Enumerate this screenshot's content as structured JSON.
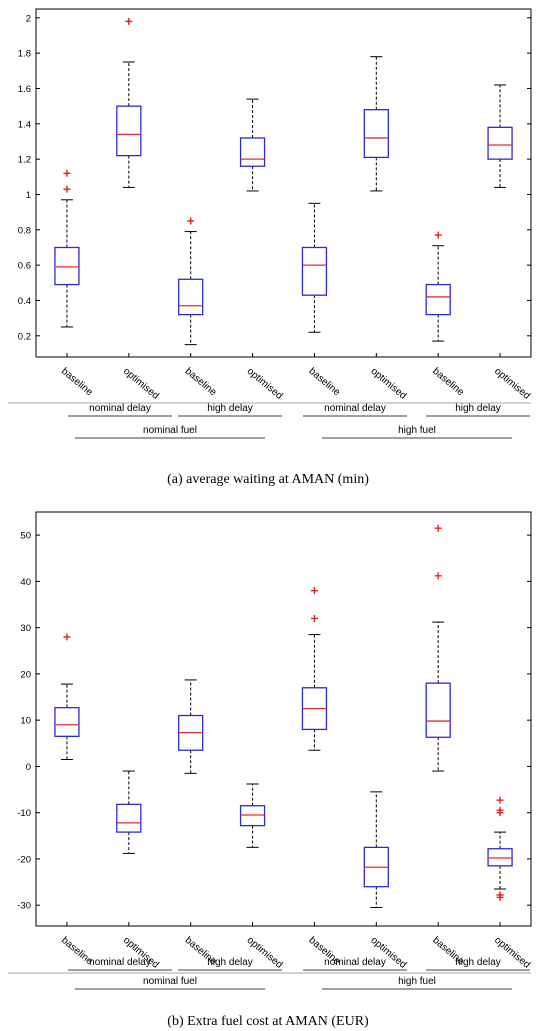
{
  "chart_data": [
    {
      "type": "boxplot",
      "caption": "(a) average waiting at AMAN (min)",
      "ylim": [
        0.08,
        2.05
      ],
      "yticks": [
        "0.2",
        "0.4",
        "0.6",
        "0.8",
        "1",
        "1.2",
        "1.4",
        "1.6",
        "1.8",
        "2"
      ],
      "categories": [
        "baseline",
        "optimised",
        "baseline",
        "optimised",
        "baseline",
        "optimised",
        "baseline",
        "optimised"
      ],
      "delay_groups": [
        "nominal delay",
        "high delay",
        "nominal delay",
        "high delay"
      ],
      "fuel_groups": [
        "nominal fuel",
        "high fuel"
      ],
      "boxes": [
        {
          "whisker_low": 0.25,
          "q1": 0.49,
          "median": 0.59,
          "q3": 0.7,
          "whisker_high": 0.97,
          "outliers": [
            1.03,
            1.12
          ]
        },
        {
          "whisker_low": 1.04,
          "q1": 1.22,
          "median": 1.34,
          "q3": 1.5,
          "whisker_high": 1.75,
          "outliers": [
            1.98
          ]
        },
        {
          "whisker_low": 0.15,
          "q1": 0.32,
          "median": 0.37,
          "q3": 0.52,
          "whisker_high": 0.79,
          "outliers": [
            0.85
          ]
        },
        {
          "whisker_low": 1.02,
          "q1": 1.16,
          "median": 1.2,
          "q3": 1.32,
          "whisker_high": 1.54,
          "outliers": []
        },
        {
          "whisker_low": 0.22,
          "q1": 0.43,
          "median": 0.6,
          "q3": 0.7,
          "whisker_high": 0.95,
          "outliers": []
        },
        {
          "whisker_low": 1.02,
          "q1": 1.21,
          "median": 1.32,
          "q3": 1.48,
          "whisker_high": 1.78,
          "outliers": []
        },
        {
          "whisker_low": 0.17,
          "q1": 0.32,
          "median": 0.42,
          "q3": 0.49,
          "whisker_high": 0.71,
          "outliers": [
            0.77
          ]
        },
        {
          "whisker_low": 1.04,
          "q1": 1.2,
          "median": 1.28,
          "q3": 1.38,
          "whisker_high": 1.62,
          "outliers": []
        }
      ],
      "colors": {
        "box": "#2b2bd9",
        "median": "#e03030",
        "whisker": "#000000",
        "outlier": "#e02020"
      }
    },
    {
      "type": "boxplot",
      "caption": "(b) Extra fuel cost at AMAN (EUR)",
      "ylim": [
        -34.5,
        55
      ],
      "yticks": [
        "-30",
        "-20",
        "-10",
        "0",
        "10",
        "20",
        "30",
        "40",
        "50"
      ],
      "categories": [
        "baseline",
        "optimised",
        "baseline",
        "optimised",
        "baseline",
        "optimised",
        "baseline",
        "optimised"
      ],
      "delay_groups": [
        "nominal delay",
        "high delay",
        "nominal delay",
        "high delay"
      ],
      "fuel_groups": [
        "nominal fuel",
        "high fuel"
      ],
      "boxes": [
        {
          "whisker_low": 1.5,
          "q1": 6.5,
          "median": 9,
          "q3": 12.7,
          "whisker_high": 17.8,
          "outliers": [
            28
          ]
        },
        {
          "whisker_low": -18.8,
          "q1": -14.2,
          "median": -12.2,
          "q3": -8.2,
          "whisker_high": -1,
          "outliers": []
        },
        {
          "whisker_low": -1.5,
          "q1": 3.5,
          "median": 7.3,
          "q3": 11,
          "whisker_high": 18.7,
          "outliers": []
        },
        {
          "whisker_low": -17.5,
          "q1": -12.8,
          "median": -10.5,
          "q3": -8.5,
          "whisker_high": -3.8,
          "outliers": []
        },
        {
          "whisker_low": 3.5,
          "q1": 8,
          "median": 12.5,
          "q3": 17,
          "whisker_high": 28.5,
          "outliers": [
            32,
            38
          ]
        },
        {
          "whisker_low": -30.5,
          "q1": -26,
          "median": -21.8,
          "q3": -17.5,
          "whisker_high": -5.5,
          "outliers": []
        },
        {
          "whisker_low": -1,
          "q1": 6.3,
          "median": 9.8,
          "q3": 18,
          "whisker_high": 31.2,
          "outliers": [
            41.2,
            51.5
          ]
        },
        {
          "whisker_low": -26.5,
          "q1": -21.5,
          "median": -19.8,
          "q3": -17.8,
          "whisker_high": -14.2,
          "outliers": [
            -7.3,
            -9.5,
            -10,
            -27.8,
            -28.3
          ]
        }
      ],
      "colors": {
        "box": "#2b2bd9",
        "median": "#e03030",
        "whisker": "#000000",
        "outlier": "#e02020"
      }
    }
  ]
}
